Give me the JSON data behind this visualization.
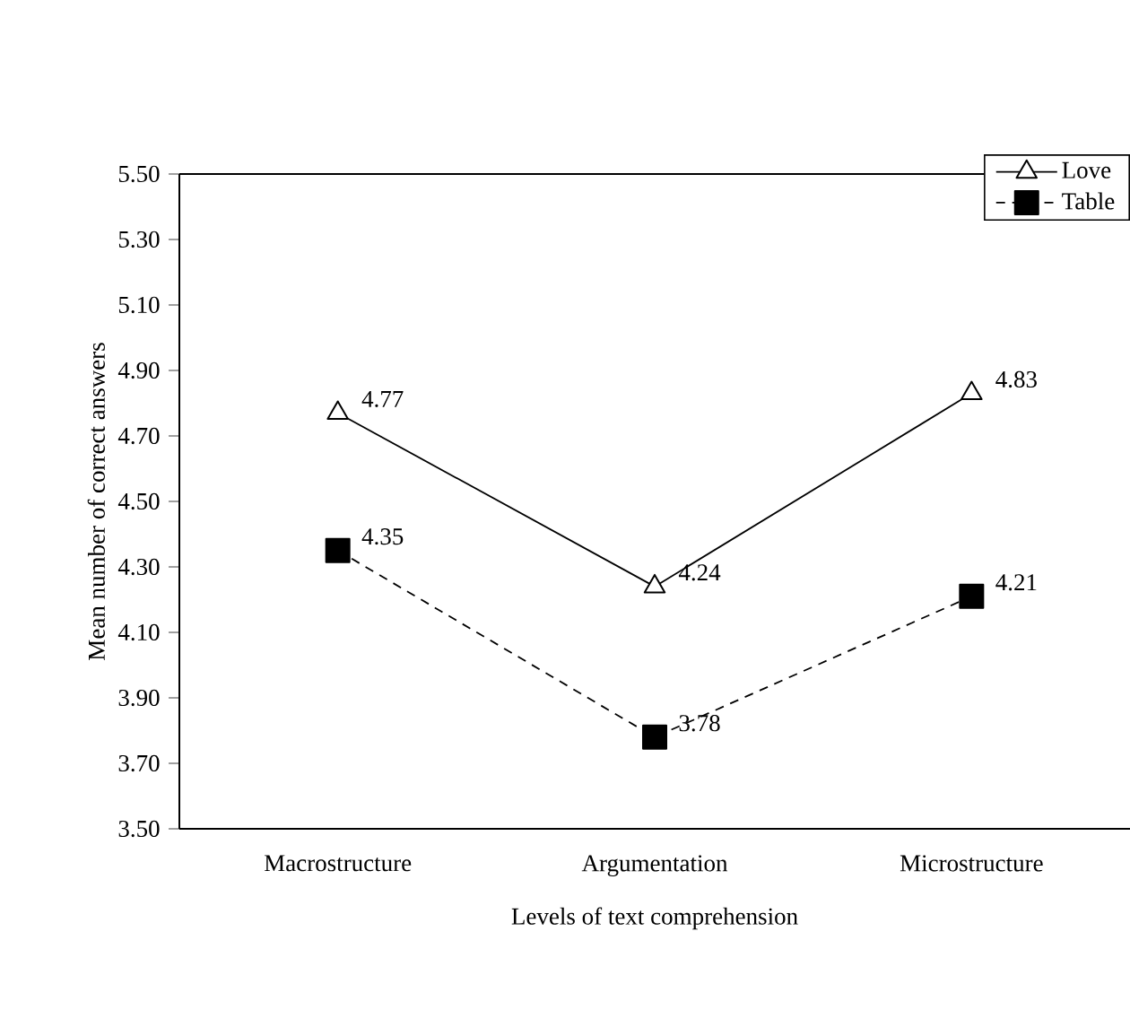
{
  "chart_data": {
    "type": "line",
    "xlabel": "Levels of text comprehension",
    "ylabel": "Mean number of correct answers",
    "categories": [
      "Macrostructure",
      "Argumentation",
      "Microstructure"
    ],
    "series": [
      {
        "name": "Love",
        "color": "#000000",
        "values": [
          4.77,
          4.24,
          4.83
        ],
        "marker": "triangle",
        "line_style": "solid"
      },
      {
        "name": "Table",
        "color": "#000000",
        "values": [
          4.35,
          3.78,
          4.21
        ],
        "marker": "square",
        "line_style": "dashed"
      }
    ],
    "ylim": [
      3.5,
      5.5
    ],
    "yticks": [
      {
        "value": 3.5,
        "label": "3.50"
      },
      {
        "value": 3.7,
        "label": "3.70"
      },
      {
        "value": 3.9,
        "label": "3.90"
      },
      {
        "value": 4.1,
        "label": "4.10"
      },
      {
        "value": 4.3,
        "label": "4.30"
      },
      {
        "value": 4.5,
        "label": "4.50"
      },
      {
        "value": 4.7,
        "label": "4.70"
      },
      {
        "value": 4.9,
        "label": "4.90"
      },
      {
        "value": 5.1,
        "label": "5.10"
      },
      {
        "value": 5.3,
        "label": "5.30"
      },
      {
        "value": 5.5,
        "label": "5.50"
      }
    ],
    "data_labels": true,
    "grid": false,
    "legend": "top right"
  }
}
